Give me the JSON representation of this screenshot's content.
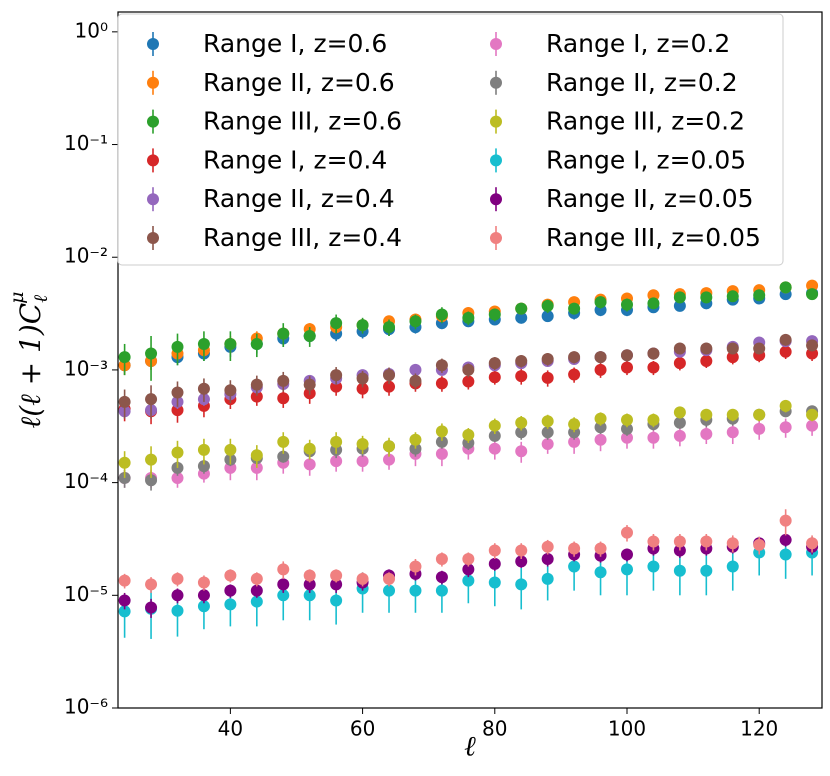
{
  "chart_data": {
    "type": "scatter",
    "xlabel": "ℓ",
    "ylabel": "ℓ(ℓ + 1)C",
    "ylabel_sub": "ℓ",
    "ylabel_sup": "μ",
    "log_y": true,
    "legend": "upper left",
    "x": [
      24,
      28,
      32,
      36,
      40,
      44,
      48,
      52,
      56,
      60,
      64,
      68,
      72,
      76,
      80,
      84,
      88,
      92,
      96,
      100,
      104,
      108,
      112,
      116,
      120,
      124,
      128
    ],
    "xlim": [
      23,
      129.5
    ],
    "xticks": [
      40,
      60,
      80,
      100,
      120
    ],
    "ylim": [
      1e-06,
      1.5
    ],
    "yticks": [
      {
        "value": 1e-06,
        "label": "10⁻⁶"
      },
      {
        "value": 1e-05,
        "label": "10⁻⁵"
      },
      {
        "value": 0.0001,
        "label": "10⁻⁴"
      },
      {
        "value": 0.001,
        "label": "10⁻³"
      },
      {
        "value": 0.01,
        "label": "10⁻²"
      },
      {
        "value": 0.1,
        "label": "10⁻¹"
      },
      {
        "value": 1,
        "label": "10⁰"
      }
    ],
    "series": [
      {
        "name": "Range I, z=0.6",
        "color": "#1f77b4",
        "values": [
          0.0011,
          0.0012,
          0.0013,
          0.0014,
          0.0016,
          0.0017,
          0.0019,
          0.002,
          0.0021,
          0.0022,
          0.0023,
          0.0024,
          0.0026,
          0.0027,
          0.0028,
          0.0029,
          0.003,
          0.0032,
          0.0034,
          0.0034,
          0.0036,
          0.0037,
          0.0039,
          0.0042,
          0.0043,
          0.0047,
          0.0048
        ],
        "errors": [
          0.0002,
          0.0002,
          0.0002,
          0.0002,
          0.0003,
          0.0003,
          0.0003,
          0.0003,
          0.0003,
          0.0003,
          0.0003,
          0.0003,
          0.0003,
          0.0003,
          0.0003,
          0.0003,
          0.0003,
          0.0004,
          0.0004,
          0.0004,
          0.0004,
          0.0004,
          0.0004,
          0.0004,
          0.0004,
          0.0005,
          0.0005
        ]
      },
      {
        "name": "Range II, z=0.6",
        "color": "#ff7f0e",
        "values": [
          0.0011,
          0.0012,
          0.0014,
          0.0015,
          0.0017,
          0.0019,
          0.0021,
          0.0023,
          0.0024,
          0.0025,
          0.0027,
          0.0028,
          0.003,
          0.0032,
          0.0033,
          0.0035,
          0.0038,
          0.004,
          0.0042,
          0.0043,
          0.0046,
          0.0047,
          0.0048,
          0.005,
          0.0051,
          0.0054,
          0.0056
        ],
        "errors": [
          0.0002,
          0.0002,
          0.0002,
          0.0002,
          0.0003,
          0.0003,
          0.0003,
          0.0003,
          0.0003,
          0.0003,
          0.0003,
          0.0003,
          0.0003,
          0.0003,
          0.0003,
          0.0003,
          0.0004,
          0.0004,
          0.0004,
          0.0004,
          0.0004,
          0.0004,
          0.0004,
          0.0004,
          0.0004,
          0.0005,
          0.0005
        ]
      },
      {
        "name": "Range III, z=0.6",
        "color": "#2ca02c",
        "values": [
          0.0013,
          0.0014,
          0.0016,
          0.0017,
          0.0017,
          0.0017,
          0.0021,
          0.002,
          0.0026,
          0.0025,
          0.0024,
          0.0027,
          0.0031,
          0.0029,
          0.0031,
          0.0035,
          0.0037,
          0.0035,
          0.004,
          0.0038,
          0.0039,
          0.0044,
          0.0044,
          0.0045,
          0.0046,
          0.0054,
          0.0047
        ],
        "errors": [
          0.0004,
          0.0006,
          0.0005,
          0.0005,
          0.0005,
          0.0004,
          0.0005,
          0.0004,
          0.0005,
          0.0004,
          0.0004,
          0.0004,
          0.0005,
          0.0004,
          0.0004,
          0.0004,
          0.0005,
          0.0004,
          0.0005,
          0.0005,
          0.0004,
          0.0005,
          0.0005,
          0.0005,
          0.0005,
          0.0006,
          0.0005
        ]
      },
      {
        "name": "Range I, z=0.4",
        "color": "#d62728",
        "values": [
          0.00045,
          0.00043,
          0.00044,
          0.00048,
          0.00055,
          0.00058,
          0.00056,
          0.00062,
          0.00071,
          0.00068,
          0.00071,
          0.00076,
          0.00076,
          0.00079,
          0.00086,
          0.00088,
          0.00085,
          0.00091,
          0.001,
          0.00105,
          0.00105,
          0.00115,
          0.0012,
          0.0013,
          0.00135,
          0.00145,
          0.0014
        ],
        "errors": [
          0.0001,
          0.0001,
          0.0001,
          0.0001,
          0.0001,
          0.0001,
          0.0001,
          0.00012,
          0.00012,
          0.00012,
          0.00012,
          0.00012,
          0.00012,
          0.00012,
          0.00012,
          0.00014,
          0.00014,
          0.00014,
          0.00015,
          0.00015,
          0.00015,
          0.00016,
          0.00016,
          0.00018,
          0.00018,
          0.0002,
          0.0002
        ]
      },
      {
        "name": "Range II, z=0.4",
        "color": "#9467bd",
        "values": [
          0.00043,
          0.00044,
          0.00052,
          0.00055,
          0.00061,
          0.0007,
          0.00075,
          0.0008,
          0.00084,
          0.0009,
          0.00092,
          0.001,
          0.001,
          0.00105,
          0.0011,
          0.00115,
          0.0012,
          0.00125,
          0.0013,
          0.00135,
          0.0014,
          0.00145,
          0.0015,
          0.0016,
          0.00175,
          0.0018,
          0.0018
        ],
        "errors": [
          6e-05,
          6e-05,
          7e-05,
          7e-05,
          8e-05,
          9e-05,
          9e-05,
          0.0001,
          0.0001,
          0.0001,
          0.0001,
          0.00011,
          0.00011,
          0.00011,
          0.00012,
          0.00012,
          0.00012,
          0.00013,
          0.00013,
          0.00013,
          0.00014,
          0.00014,
          0.00015,
          0.00016,
          0.00017,
          0.00018,
          0.00018
        ]
      },
      {
        "name": "Range III, z=0.4",
        "color": "#8c564b",
        "values": [
          0.00052,
          0.00055,
          0.00063,
          0.00068,
          0.00066,
          0.00074,
          0.0008,
          0.00074,
          0.0009,
          0.00084,
          0.0009,
          0.0008,
          0.0011,
          0.001,
          0.00115,
          0.0012,
          0.00125,
          0.0013,
          0.0013,
          0.00135,
          0.0014,
          0.00155,
          0.00155,
          0.00155,
          0.00155,
          0.00185,
          0.00165
        ],
        "errors": [
          0.00015,
          0.00018,
          0.00016,
          0.00016,
          0.00015,
          0.00015,
          0.00016,
          0.00014,
          0.00016,
          0.00014,
          0.00015,
          0.00013,
          0.00016,
          0.00014,
          0.00015,
          0.00015,
          0.00016,
          0.00016,
          0.00016,
          0.00016,
          0.00017,
          0.00018,
          0.00018,
          0.00018,
          0.00018,
          0.0002,
          0.00019
        ]
      },
      {
        "name": "Range I, z=0.2",
        "color": "#e377c2",
        "values": [
          0.00011,
          0.00011,
          0.00011,
          0.00012,
          0.000135,
          0.000135,
          0.00015,
          0.000145,
          0.000155,
          0.000155,
          0.00016,
          0.00018,
          0.00018,
          0.0002,
          0.0002,
          0.00019,
          0.00022,
          0.00023,
          0.00024,
          0.00025,
          0.00025,
          0.00026,
          0.00027,
          0.00028,
          0.0003,
          0.00031,
          0.00032
        ],
        "errors": [
          2e-05,
          2e-05,
          2e-05,
          2e-05,
          3e-05,
          3e-05,
          3e-05,
          3e-05,
          3e-05,
          3e-05,
          3e-05,
          4e-05,
          4e-05,
          4e-05,
          4e-05,
          4e-05,
          4e-05,
          5e-05,
          5e-05,
          5e-05,
          5e-05,
          5e-05,
          5e-05,
          6e-05,
          6e-05,
          6e-05,
          6e-05
        ]
      },
      {
        "name": "Range II, z=0.2",
        "color": "#7f7f7f",
        "values": [
          0.00011,
          0.000105,
          0.000135,
          0.00014,
          0.00016,
          0.000165,
          0.00017,
          0.00019,
          0.000195,
          0.0002,
          0.00021,
          0.0002,
          0.00023,
          0.000225,
          0.00026,
          0.00028,
          0.00028,
          0.00028,
          0.00031,
          0.0003,
          0.00033,
          0.00034,
          0.00036,
          0.00037,
          0.0004,
          0.00043,
          0.00043
        ],
        "errors": [
          2e-05,
          2e-05,
          2e-05,
          2e-05,
          2e-05,
          2e-05,
          2e-05,
          3e-05,
          3e-05,
          3e-05,
          3e-05,
          3e-05,
          3e-05,
          3e-05,
          3e-05,
          4e-05,
          4e-05,
          4e-05,
          4e-05,
          4e-05,
          4e-05,
          4e-05,
          5e-05,
          5e-05,
          5e-05,
          5e-05,
          5e-05
        ]
      },
      {
        "name": "Range III, z=0.2",
        "color": "#bcbd22",
        "values": [
          0.00015,
          0.00016,
          0.000185,
          0.000195,
          0.000195,
          0.000175,
          0.00023,
          0.0002,
          0.00023,
          0.00022,
          0.00021,
          0.00024,
          0.000285,
          0.000265,
          0.00032,
          0.00034,
          0.00035,
          0.00033,
          0.00037,
          0.00036,
          0.00036,
          0.00042,
          0.0004,
          0.0004,
          0.0004,
          0.00048,
          0.0004
        ],
        "errors": [
          4e-05,
          5e-05,
          5e-05,
          5e-05,
          5e-05,
          4e-05,
          5e-05,
          4e-05,
          5e-05,
          4e-05,
          4e-05,
          4e-05,
          5e-05,
          4e-05,
          5e-05,
          5e-05,
          5e-05,
          5e-05,
          5e-05,
          5e-05,
          5e-05,
          5e-05,
          5e-05,
          5e-05,
          5e-05,
          6e-05,
          5e-05
        ]
      },
      {
        "name": "Range I, z=0.05",
        "color": "#17becf",
        "values": [
          7.2e-06,
          7.6e-06,
          7.3e-06,
          8e-06,
          8.3e-06,
          8.8e-06,
          1e-05,
          1e-05,
          9e-06,
          1.15e-05,
          1.1e-05,
          1.1e-05,
          1.1e-05,
          1.35e-05,
          1.3e-05,
          1.25e-05,
          1.4e-05,
          1.8e-05,
          1.6e-05,
          1.7e-05,
          1.8e-05,
          1.65e-05,
          1.65e-05,
          1.8e-05,
          2.4e-05,
          2.3e-05,
          2.4e-05
        ],
        "errors": [
          3e-06,
          3.5e-06,
          3e-06,
          3e-06,
          3e-06,
          3.5e-06,
          4e-06,
          4e-06,
          3.5e-06,
          4.5e-06,
          4e-06,
          4e-06,
          4e-06,
          5e-06,
          5e-06,
          5e-06,
          5e-06,
          7e-06,
          6e-06,
          7e-06,
          7e-06,
          6.5e-06,
          6.5e-06,
          7e-06,
          9e-06,
          9e-06,
          9e-06
        ]
      },
      {
        "name": "Range II, z=0.05",
        "color": "#800080",
        "values": [
          9e-06,
          7.8e-06,
          1e-05,
          1e-05,
          1.1e-05,
          1.1e-05,
          1.25e-05,
          1.25e-05,
          1.25e-05,
          1.3e-05,
          1.5e-05,
          1.55e-05,
          1.45e-05,
          1.7e-05,
          1.9e-05,
          2e-05,
          2.1e-05,
          2.3e-05,
          2.25e-05,
          2.3e-05,
          2.6e-05,
          2.5e-05,
          2.6e-05,
          2.7e-05,
          2.9e-05,
          3.1e-05,
          2.7e-05
        ],
        "errors": [
          1.5e-06,
          1.5e-06,
          1.5e-06,
          1.5e-06,
          1.5e-06,
          1.5e-06,
          2e-06,
          2e-06,
          2e-06,
          2e-06,
          2e-06,
          2e-06,
          2e-06,
          2.5e-06,
          2.5e-06,
          2.5e-06,
          3e-06,
          3e-06,
          3e-06,
          3e-06,
          3.5e-06,
          3.5e-06,
          3.5e-06,
          3.5e-06,
          4e-06,
          4e-06,
          4e-06
        ]
      },
      {
        "name": "Range III, z=0.05",
        "color": "#f08080",
        "values": [
          1.35e-05,
          1.25e-05,
          1.4e-05,
          1.3e-05,
          1.5e-05,
          1.4e-05,
          1.7e-05,
          1.5e-05,
          1.5e-05,
          1.4e-05,
          1.4e-05,
          1.8e-05,
          2.1e-05,
          2.1e-05,
          2.5e-05,
          2.5e-05,
          2.7e-05,
          2.6e-05,
          2.6e-05,
          3.6e-05,
          3e-05,
          3e-05,
          3e-05,
          2.9e-05,
          2.8e-05,
          4.6e-05,
          2.9e-05
        ],
        "errors": [
          2e-06,
          2e-06,
          2e-06,
          2e-06,
          2e-06,
          2e-06,
          3e-06,
          2e-06,
          2e-06,
          2e-06,
          2e-06,
          3e-06,
          3e-06,
          3e-06,
          4e-06,
          4e-06,
          4e-06,
          4e-06,
          4e-06,
          6e-06,
          5e-06,
          5e-06,
          5e-06,
          5e-06,
          5e-06,
          1.2e-05,
          5e-06
        ]
      }
    ]
  }
}
